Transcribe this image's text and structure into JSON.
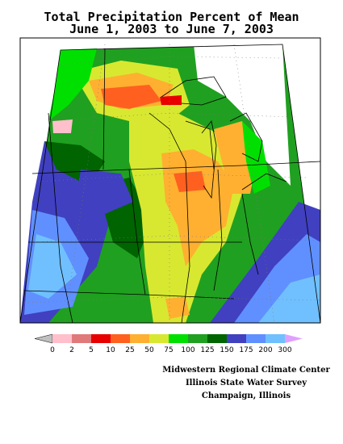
{
  "title": {
    "line1": "Total Precipitation Percent of Mean",
    "line2": "June 1, 2003 to June 7, 2003"
  },
  "legend": {
    "bins": [
      {
        "label": "0",
        "color": "#ffc0cb"
      },
      {
        "label": "2",
        "color": "#e07a7a"
      },
      {
        "label": "5",
        "color": "#e80000"
      },
      {
        "label": "10",
        "color": "#ff6020"
      },
      {
        "label": "25",
        "color": "#ffb030"
      },
      {
        "label": "50",
        "color": "#d8e830"
      },
      {
        "label": "75",
        "color": "#00e000"
      },
      {
        "label": "100",
        "color": "#20a020"
      },
      {
        "label": "125",
        "color": "#006400"
      },
      {
        "label": "150",
        "color": "#4040c0"
      },
      {
        "label": "175",
        "color": "#6090ff"
      },
      {
        "label": "200",
        "color": "#70c0ff"
      },
      {
        "label": "300",
        "color": "#e0a0ff"
      }
    ],
    "under_color": "#c0c0c0"
  },
  "credits": {
    "line1": "Midwestern Regional Climate Center",
    "line2": "Illinois State Water Survey",
    "line3": "Champaign, Illinois"
  }
}
